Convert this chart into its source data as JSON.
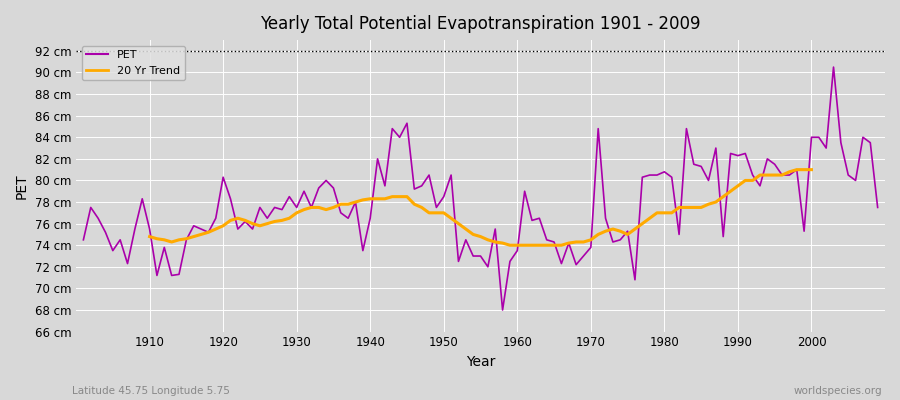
{
  "title": "Yearly Total Potential Evapotranspiration 1901 - 2009",
  "xlabel": "Year",
  "ylabel": "PET",
  "subtitle_left": "Latitude 45.75 Longitude 5.75",
  "subtitle_right": "worldspecies.org",
  "pet_color": "#aa00aa",
  "trend_color": "#ffaa00",
  "bg_color": "#e8e8e8",
  "plot_bg_color": "#d8d8d8",
  "ylim": [
    66,
    93
  ],
  "xlim": [
    1900,
    2010
  ],
  "yticks": [
    66,
    68,
    70,
    72,
    74,
    76,
    78,
    80,
    82,
    84,
    86,
    88,
    90,
    92
  ],
  "years": [
    1901,
    1902,
    1903,
    1904,
    1905,
    1906,
    1907,
    1908,
    1909,
    1910,
    1911,
    1912,
    1913,
    1914,
    1915,
    1916,
    1917,
    1918,
    1919,
    1920,
    1921,
    1922,
    1923,
    1924,
    1925,
    1926,
    1927,
    1928,
    1929,
    1930,
    1931,
    1932,
    1933,
    1934,
    1935,
    1936,
    1937,
    1938,
    1939,
    1940,
    1941,
    1942,
    1943,
    1944,
    1945,
    1946,
    1947,
    1948,
    1949,
    1950,
    1951,
    1952,
    1953,
    1954,
    1955,
    1956,
    1957,
    1958,
    1959,
    1960,
    1961,
    1962,
    1963,
    1964,
    1965,
    1966,
    1967,
    1968,
    1969,
    1970,
    1971,
    1972,
    1973,
    1974,
    1975,
    1976,
    1977,
    1978,
    1979,
    1980,
    1981,
    1982,
    1983,
    1984,
    1985,
    1986,
    1987,
    1988,
    1989,
    1990,
    1991,
    1992,
    1993,
    1994,
    1995,
    1996,
    1997,
    1998,
    1999,
    2000,
    2001,
    2002,
    2003,
    2004,
    2005,
    2006,
    2007,
    2008,
    2009
  ],
  "pet_values": [
    74.5,
    77.5,
    76.5,
    75.2,
    73.5,
    74.5,
    72.3,
    75.5,
    78.3,
    75.5,
    71.2,
    73.8,
    71.2,
    71.3,
    74.5,
    75.8,
    75.5,
    75.2,
    76.5,
    80.3,
    78.3,
    75.5,
    76.2,
    75.5,
    77.5,
    76.5,
    77.5,
    77.3,
    78.5,
    77.5,
    79.0,
    77.5,
    79.3,
    80.0,
    79.3,
    77.0,
    76.5,
    78.0,
    73.5,
    76.5,
    82.0,
    79.5,
    84.8,
    84.0,
    85.3,
    79.2,
    79.5,
    80.5,
    77.5,
    78.5,
    80.5,
    72.5,
    74.5,
    73.0,
    73.0,
    72.0,
    75.5,
    68.0,
    72.5,
    73.5,
    79.0,
    76.3,
    76.5,
    74.5,
    74.3,
    72.3,
    74.2,
    72.2,
    73.0,
    73.8,
    84.8,
    76.5,
    74.3,
    74.5,
    75.3,
    70.8,
    80.3,
    80.5,
    80.5,
    80.8,
    80.3,
    75.0,
    84.8,
    81.5,
    81.3,
    80.0,
    83.0,
    74.8,
    82.5,
    82.3,
    82.5,
    80.5,
    79.5,
    82.0,
    81.5,
    80.5,
    80.5,
    81.0,
    75.3,
    84.0,
    84.0,
    83.0,
    90.5,
    83.5,
    80.5,
    80.0,
    84.0,
    83.5,
    77.5
  ],
  "trend_values_x": [
    1901,
    1902,
    1903,
    1904,
    1905,
    1906,
    1907,
    1908,
    1909,
    1910,
    1911,
    1912,
    1913,
    1914,
    1915,
    1916,
    1917,
    1918,
    1919,
    1920,
    1921,
    1922,
    1923,
    1924,
    1925,
    1926,
    1927,
    1928,
    1929,
    1930,
    1931,
    1932,
    1933,
    1934,
    1935,
    1936,
    1937,
    1938,
    1939,
    1940,
    1941,
    1942,
    1943,
    1944,
    1945,
    1946,
    1947,
    1948,
    1949,
    1950,
    1951,
    1952,
    1953,
    1954,
    1955,
    1956,
    1957,
    1958,
    1959,
    1960,
    1961,
    1962,
    1963,
    1964,
    1965,
    1966,
    1967,
    1968,
    1969,
    1970,
    1971,
    1972,
    1973,
    1974,
    1975,
    1976,
    1977,
    1978,
    1979,
    1980,
    1981,
    1982,
    1983,
    1984,
    1985,
    1986,
    1987,
    1988,
    1989,
    1990,
    1991,
    1992,
    1993,
    1994,
    1995,
    1996,
    1997,
    1998,
    1999,
    2000,
    2001,
    2002,
    2003,
    2004,
    2005,
    2006,
    2007,
    2008,
    2009
  ],
  "trend_values": [
    null,
    null,
    null,
    null,
    null,
    null,
    null,
    null,
    null,
    74.8,
    74.6,
    74.5,
    74.3,
    74.5,
    74.6,
    74.8,
    75.0,
    75.2,
    75.5,
    75.8,
    76.3,
    76.5,
    76.3,
    76.0,
    75.8,
    76.0,
    76.2,
    76.3,
    76.5,
    77.0,
    77.3,
    77.5,
    77.5,
    77.3,
    77.5,
    77.8,
    77.8,
    78.0,
    78.2,
    78.3,
    78.3,
    78.3,
    78.5,
    78.5,
    78.5,
    77.8,
    77.5,
    77.0,
    77.0,
    77.0,
    76.5,
    76.0,
    75.5,
    75.0,
    74.8,
    74.5,
    74.3,
    74.2,
    74.0,
    74.0,
    74.0,
    74.0,
    74.0,
    74.0,
    74.0,
    74.0,
    74.2,
    74.3,
    74.3,
    74.5,
    75.0,
    75.3,
    75.5,
    75.3,
    75.0,
    75.5,
    76.0,
    76.5,
    77.0,
    77.0,
    77.0,
    77.5,
    77.5,
    77.5,
    77.5,
    77.8,
    78.0,
    78.5,
    79.0,
    79.5,
    80.0,
    80.0,
    80.5,
    80.5,
    80.5,
    80.5,
    80.8,
    81.0,
    81.0,
    81.0,
    null,
    null,
    null,
    null,
    null,
    null,
    null,
    null,
    null
  ]
}
